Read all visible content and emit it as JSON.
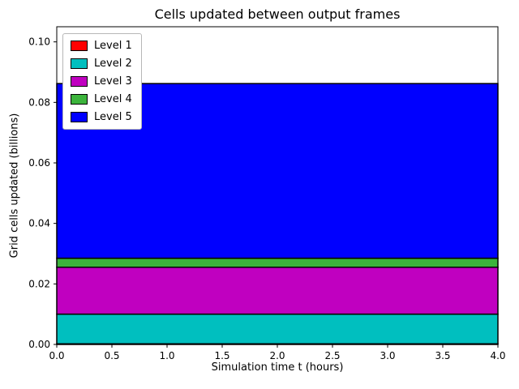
{
  "chart_data": {
    "type": "area",
    "title": "Cells updated between output frames",
    "xlabel": "Simulation time t (hours)",
    "ylabel": "Grid cells updated (billions)",
    "x": [
      0,
      4
    ],
    "xlim": [
      0,
      4
    ],
    "ylim": [
      0,
      0.105
    ],
    "xticks": [
      0.0,
      0.5,
      1.0,
      1.5,
      2.0,
      2.5,
      3.0,
      3.5,
      4.0
    ],
    "yticks": [
      0.0,
      0.02,
      0.04,
      0.06,
      0.08,
      0.1
    ],
    "grid": false,
    "legend_position": "upper left",
    "stack_edge_color": "#000000",
    "series": [
      {
        "name": "Level 1",
        "color": "#ff0000",
        "values": [
          0.0002,
          0.0002
        ]
      },
      {
        "name": "Level 2",
        "color": "#00bfbf",
        "values": [
          0.0098,
          0.0098
        ]
      },
      {
        "name": "Level 3",
        "color": "#c000c0",
        "values": [
          0.0155,
          0.0155
        ]
      },
      {
        "name": "Level 4",
        "color": "#3cb43c",
        "values": [
          0.003,
          0.003
        ]
      },
      {
        "name": "Level 5",
        "color": "#0000ff",
        "values": [
          0.0577,
          0.0577
        ]
      }
    ]
  }
}
